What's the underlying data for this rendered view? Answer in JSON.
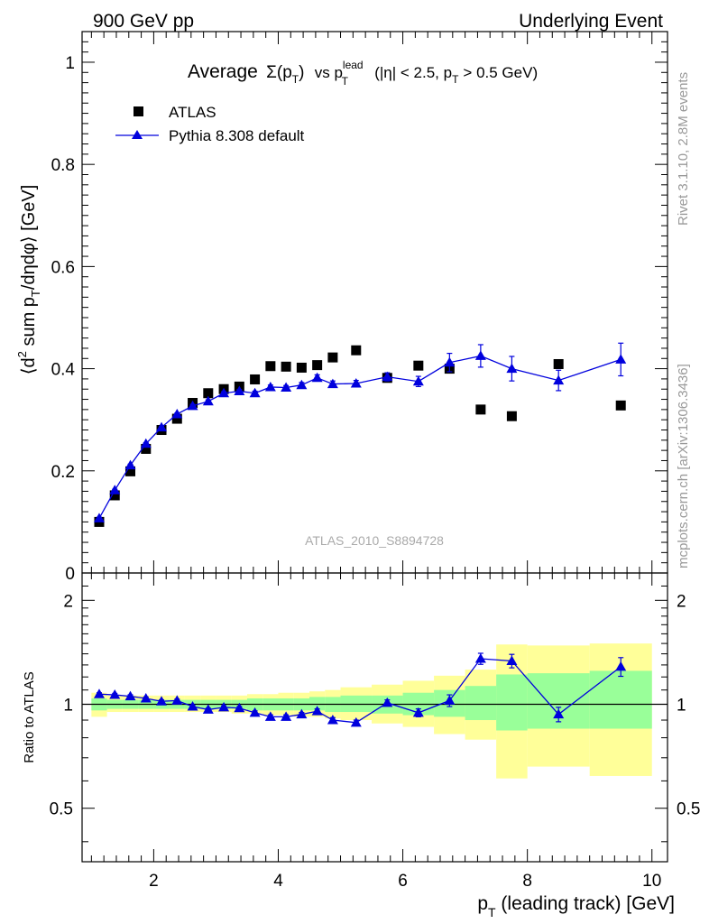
{
  "header": {
    "left": "900 GeV pp",
    "right": "Underlying Event"
  },
  "side_labels": {
    "rivet": "Rivet 3.1.10,  2.8M events",
    "mcplots": "mcplots.cern.ch [arXiv:1306.3436]"
  },
  "chart_data": [
    {
      "type": "scatter",
      "title": "Average Σ(pT) vs pT^lead (|η| < 2.5, pT > 0.5 GeV)",
      "title_parts": {
        "word": "Average",
        "sigma": "Σ(p",
        "sub_t1": "T",
        "close": ")",
        "vs": "vs p",
        "sup_lead": "lead",
        "sub_t2": "T",
        "cond_a": "(|η| < 2.5, p",
        "sub_t3": "T",
        "cond_b": "> 0.5 GeV)"
      },
      "ylabel": "⟨d² sum pT/dηdφ⟩ [GeV]",
      "ylabel_parts": {
        "a": "⟨d",
        "sup2": "2",
        "b": " sum p",
        "subT": "T",
        "c": "/dηdφ⟩ [GeV]"
      },
      "watermark": "ATLAS_2010_S8894728",
      "xlim": [
        0.85,
        10.25
      ],
      "ylim": [
        0,
        1.06
      ],
      "yticks": [
        0,
        0.2,
        0.4,
        0.6,
        0.8,
        1
      ],
      "ytick_labels": [
        "0",
        "0.2",
        "0.4",
        "0.6",
        "0.8",
        "1"
      ],
      "legend_position": "top-left",
      "series": [
        {
          "name": "ATLAS",
          "marker": "square",
          "color": "#000000",
          "x": [
            1.125,
            1.375,
            1.625,
            1.875,
            2.125,
            2.375,
            2.625,
            2.875,
            3.125,
            3.375,
            3.625,
            3.875,
            4.125,
            4.375,
            4.625,
            4.875,
            5.25,
            5.75,
            6.25,
            6.75,
            7.25,
            7.75,
            8.5,
            9.5
          ],
          "y": [
            0.1,
            0.152,
            0.199,
            0.243,
            0.28,
            0.302,
            0.333,
            0.352,
            0.36,
            0.365,
            0.379,
            0.405,
            0.404,
            0.402,
            0.407,
            0.422,
            0.436,
            0.382,
            0.406,
            0.4,
            0.32,
            0.307,
            0.409,
            0.328
          ]
        },
        {
          "name": "Pythia 8.308 default",
          "marker": "triangle",
          "color": "#0000dd",
          "x": [
            1.125,
            1.375,
            1.625,
            1.875,
            2.125,
            2.375,
            2.625,
            2.875,
            3.125,
            3.375,
            3.625,
            3.875,
            4.125,
            4.375,
            4.625,
            4.875,
            5.25,
            5.75,
            6.25,
            6.75,
            7.25,
            7.75,
            8.5,
            9.5
          ],
          "y": [
            0.107,
            0.162,
            0.211,
            0.253,
            0.285,
            0.311,
            0.327,
            0.336,
            0.352,
            0.356,
            0.352,
            0.364,
            0.363,
            0.368,
            0.382,
            0.37,
            0.371,
            0.384,
            0.375,
            0.412,
            0.425,
            0.4,
            0.377,
            0.418
          ],
          "yerr": [
            0.002,
            0.002,
            0.002,
            0.002,
            0.002,
            0.002,
            0.003,
            0.003,
            0.003,
            0.003,
            0.004,
            0.004,
            0.004,
            0.005,
            0.006,
            0.006,
            0.006,
            0.008,
            0.01,
            0.018,
            0.022,
            0.024,
            0.02,
            0.032
          ]
        }
      ]
    },
    {
      "type": "scatter",
      "ylabel": "Ratio to ATLAS",
      "xlabel": "pT (leading track) [GeV]",
      "xlabel_parts": {
        "a": "p",
        "subT": "T",
        "b": " (leading track) [GeV]"
      },
      "xlim": [
        0.85,
        10.25
      ],
      "ylim": [
        0.35,
        2.4
      ],
      "ylog": true,
      "yticks": [
        0.5,
        1,
        2
      ],
      "ytick_labels": [
        "0.5",
        "1",
        "2"
      ],
      "xticks": [
        2,
        4,
        6,
        8,
        10
      ],
      "xtick_labels": [
        "2",
        "4",
        "6",
        "8",
        "10"
      ],
      "reference_line": 1,
      "bands": {
        "inner_color": "#99ff99",
        "outer_color": "#ffff99",
        "x_low": [
          1.0,
          1.25,
          1.5,
          1.75,
          2.0,
          2.25,
          2.5,
          2.75,
          3.0,
          3.25,
          3.5,
          3.75,
          4.0,
          4.25,
          4.5,
          4.75,
          5.0,
          5.5,
          6.0,
          6.5,
          7.0,
          7.5,
          8.0,
          9.0
        ],
        "x_high": [
          1.25,
          1.5,
          1.75,
          2.0,
          2.25,
          2.5,
          2.75,
          3.0,
          3.25,
          3.5,
          3.75,
          4.0,
          4.25,
          4.5,
          4.75,
          5.0,
          5.5,
          6.0,
          6.5,
          7.0,
          7.5,
          8.0,
          9.0,
          10.0
        ],
        "inner_low": [
          0.96,
          0.97,
          0.97,
          0.97,
          0.97,
          0.97,
          0.97,
          0.97,
          0.97,
          0.97,
          0.96,
          0.96,
          0.96,
          0.96,
          0.96,
          0.95,
          0.95,
          0.94,
          0.93,
          0.92,
          0.9,
          0.84,
          0.85,
          0.85
        ],
        "inner_high": [
          1.04,
          1.03,
          1.03,
          1.03,
          1.03,
          1.03,
          1.03,
          1.03,
          1.03,
          1.03,
          1.04,
          1.04,
          1.04,
          1.04,
          1.05,
          1.05,
          1.06,
          1.06,
          1.08,
          1.1,
          1.13,
          1.22,
          1.23,
          1.25
        ],
        "outer_low": [
          0.92,
          0.95,
          0.95,
          0.95,
          0.95,
          0.95,
          0.95,
          0.95,
          0.95,
          0.94,
          0.94,
          0.93,
          0.93,
          0.92,
          0.92,
          0.91,
          0.9,
          0.88,
          0.86,
          0.82,
          0.79,
          0.61,
          0.66,
          0.62
        ],
        "outer_high": [
          1.08,
          1.06,
          1.06,
          1.06,
          1.06,
          1.06,
          1.06,
          1.06,
          1.06,
          1.06,
          1.07,
          1.07,
          1.08,
          1.08,
          1.09,
          1.1,
          1.12,
          1.14,
          1.17,
          1.21,
          1.26,
          1.49,
          1.48,
          1.5
        ]
      },
      "series": [
        {
          "name": "Pythia 8.308 default",
          "marker": "triangle",
          "color": "#0000dd",
          "x": [
            1.125,
            1.375,
            1.625,
            1.875,
            2.125,
            2.375,
            2.625,
            2.875,
            3.125,
            3.375,
            3.625,
            3.875,
            4.125,
            4.375,
            4.625,
            4.875,
            5.25,
            5.75,
            6.25,
            6.75,
            7.25,
            7.75,
            8.5,
            9.5
          ],
          "y": [
            1.07,
            1.065,
            1.055,
            1.04,
            1.02,
            1.025,
            0.985,
            0.965,
            0.98,
            0.975,
            0.945,
            0.92,
            0.92,
            0.935,
            0.955,
            0.9,
            0.885,
            1.01,
            0.945,
            1.025,
            1.355,
            1.335,
            0.935,
            1.285
          ],
          "yerr": [
            0.01,
            0.01,
            0.01,
            0.01,
            0.01,
            0.01,
            0.01,
            0.01,
            0.01,
            0.01,
            0.012,
            0.012,
            0.012,
            0.012,
            0.015,
            0.015,
            0.015,
            0.02,
            0.025,
            0.04,
            0.05,
            0.06,
            0.045,
            0.08
          ]
        }
      ]
    }
  ]
}
